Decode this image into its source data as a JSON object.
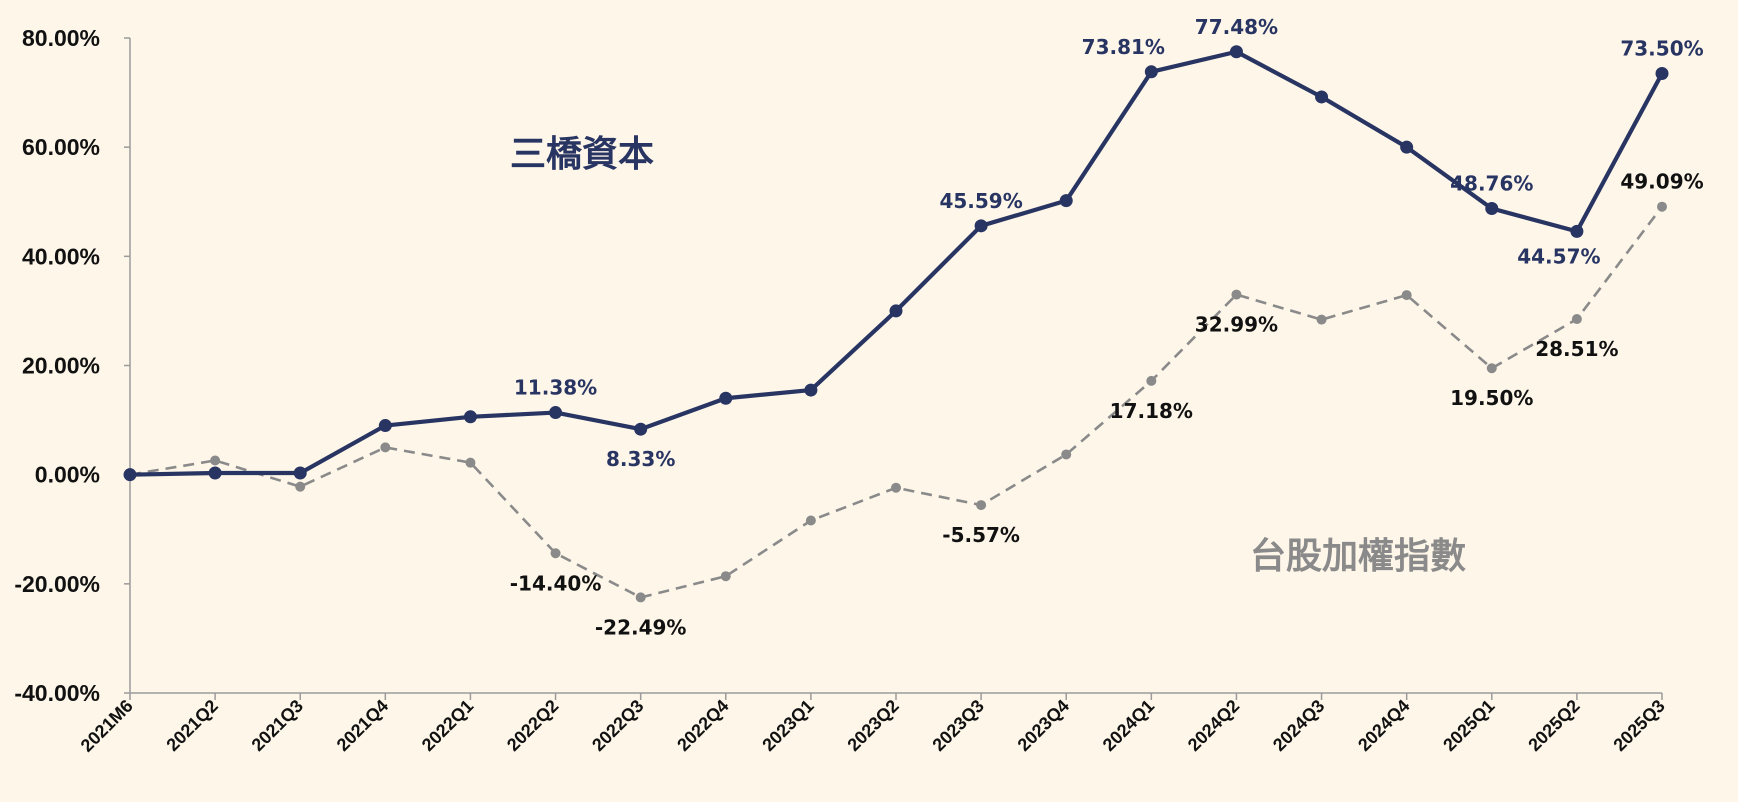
{
  "colors": {
    "background": "#fdf6e9",
    "fund": "#283462",
    "index": "#8a8a8a",
    "axis": "#9b9b9b",
    "text": "#111111"
  },
  "chart_data": {
    "type": "line",
    "categories": [
      "2021M6",
      "2021Q2",
      "2021Q3",
      "2021Q4",
      "2022Q1",
      "2022Q2",
      "2022Q3",
      "2022Q4",
      "2023Q1",
      "2023Q2",
      "2023Q3",
      "2023Q4",
      "2024Q1",
      "2024Q2",
      "2024Q3",
      "2024Q4",
      "2025Q1",
      "2025Q2",
      "2025Q3"
    ],
    "ylim": [
      -40,
      80
    ],
    "yticks": [
      -40,
      -20,
      0,
      20,
      40,
      60,
      80
    ],
    "ytick_labels": [
      "-40.00%",
      "-20.00%",
      "0.00%",
      "20.00%",
      "40.00%",
      "60.00%",
      "80.00%"
    ],
    "grid": false,
    "series": [
      {
        "name": "三橋資本",
        "style": "solid",
        "color": "#283462",
        "values": [
          0,
          0.3,
          0.3,
          9.0,
          10.6,
          11.38,
          8.33,
          14.0,
          15.5,
          30.0,
          45.59,
          50.2,
          73.81,
          77.48,
          69.2,
          60.0,
          48.76,
          44.57,
          73.5
        ],
        "labels": [
          {
            "index": 5,
            "text": "11.38%",
            "pos": "above"
          },
          {
            "index": 6,
            "text": "8.33%",
            "pos": "below"
          },
          {
            "index": 10,
            "text": "45.59%",
            "pos": "above"
          },
          {
            "index": 12,
            "text": "73.81%",
            "pos": "above-left"
          },
          {
            "index": 13,
            "text": "77.48%",
            "pos": "above"
          },
          {
            "index": 16,
            "text": "48.76%",
            "pos": "above"
          },
          {
            "index": 17,
            "text": "44.57%",
            "pos": "below-left"
          },
          {
            "index": 18,
            "text": "73.50%",
            "pos": "above"
          }
        ]
      },
      {
        "name": "台股加權指數",
        "style": "dashed",
        "color": "#8a8a8a",
        "values": [
          0,
          2.6,
          -2.2,
          5.0,
          2.2,
          -14.4,
          -22.49,
          -18.6,
          -8.4,
          -2.4,
          -5.57,
          3.7,
          17.18,
          32.99,
          28.4,
          32.9,
          19.5,
          28.51,
          49.09
        ],
        "labels": [
          {
            "index": 5,
            "text": "-14.40%",
            "pos": "below"
          },
          {
            "index": 6,
            "text": "-22.49%",
            "pos": "below"
          },
          {
            "index": 10,
            "text": "-5.57%",
            "pos": "below"
          },
          {
            "index": 12,
            "text": "17.18%",
            "pos": "below"
          },
          {
            "index": 13,
            "text": "32.99%",
            "pos": "below"
          },
          {
            "index": 16,
            "text": "19.50%",
            "pos": "below"
          },
          {
            "index": 17,
            "text": "28.51%",
            "pos": "below"
          },
          {
            "index": 18,
            "text": "49.09%",
            "pos": "above"
          }
        ]
      }
    ]
  }
}
